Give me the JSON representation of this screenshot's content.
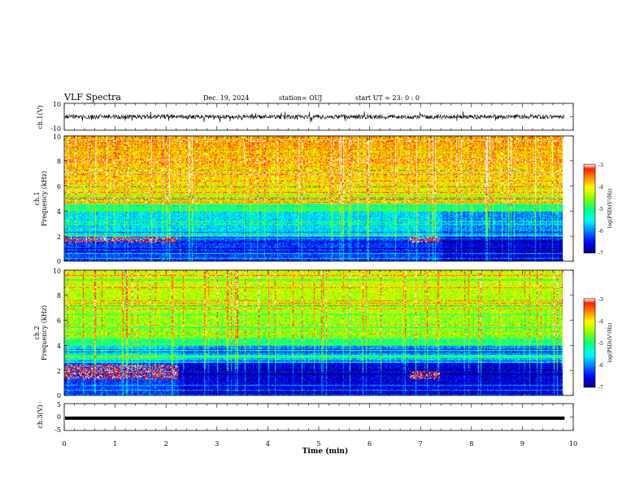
{
  "header": {
    "title": "VLF Spectra",
    "date": "Dec. 19, 2024",
    "station": "station= OUJ",
    "start": "start  UT =   23: 0  : 0"
  },
  "colors": {
    "colormap": [
      "#000080",
      "#0000ff",
      "#0080ff",
      "#00ffff",
      "#00ff80",
      "#80ff00",
      "#ffff00",
      "#ff8000",
      "#ff0000",
      "#ffffff"
    ],
    "trace": "#000000",
    "axis": "#000000"
  },
  "chart_data": [
    {
      "type": "line",
      "panel": "ch1-waveform",
      "ylabel": "ch.1(V)",
      "ylim": [
        -10,
        10
      ],
      "yticks": [
        "10",
        "-10"
      ],
      "x_range": [
        0,
        9.83
      ],
      "description_values": {
        "baseline": 0,
        "typical_amplitude": 3,
        "max_amplitude": 9
      }
    },
    {
      "type": "heatmap",
      "panel": "ch1-spectrogram",
      "ylabel": "Frequency (kHz)",
      "channel_label": "ch.1",
      "ylim": [
        0,
        10
      ],
      "yticks": [
        "0",
        "2",
        "4",
        "6",
        "8",
        "10"
      ],
      "x_range": [
        0,
        9.83
      ],
      "colorbar": {
        "label": "log(PSD)(V²/Hz)",
        "ticks": [
          "-3",
          "-4",
          "-5",
          "-6",
          "-7"
        ],
        "range": [
          -7,
          -3
        ]
      },
      "features": {
        "high_band_level": -3.6,
        "mid_band_kHz": [
          4,
          4.6
        ],
        "low_band_kHz": [
          0,
          2
        ],
        "bright_segments": [
          {
            "x0": 0.0,
            "x1": 2.25,
            "f0": 1.5,
            "f1": 2.0
          },
          {
            "x0": 6.8,
            "x1": 7.4,
            "f0": 1.5,
            "f1": 2.0
          }
        ],
        "transition_min": 7.45
      }
    },
    {
      "type": "heatmap",
      "panel": "ch2-spectrogram",
      "ylabel": "Frequency (kHz)",
      "channel_label": "ch.2",
      "ylim": [
        0,
        10
      ],
      "yticks": [
        "0",
        "2",
        "4",
        "6",
        "8",
        "10"
      ],
      "x_range": [
        0,
        9.83
      ],
      "colorbar": {
        "label": "log(PSD)(V²/Hz)",
        "ticks": [
          "-3",
          "-4",
          "-5",
          "-6",
          "-7"
        ],
        "range": [
          -7,
          -3
        ]
      },
      "features": {
        "high_band_level": -4.1,
        "mid_band_kHz": [
          4,
          4.6
        ],
        "low_band_kHz": [
          0,
          3
        ],
        "bright_segments": [
          {
            "x0": 0.0,
            "x1": 2.25,
            "f0": 1.3,
            "f1": 2.5
          },
          {
            "x0": 6.8,
            "x1": 7.4,
            "f0": 1.3,
            "f1": 2.0
          }
        ],
        "transition_min": 2.25
      }
    },
    {
      "type": "line",
      "panel": "ch3-waveform",
      "ylabel": "ch.3(V)",
      "ylim": [
        -5,
        5
      ],
      "yticks": [
        "5",
        "0",
        "-5"
      ],
      "x_range": [
        0,
        9.83
      ],
      "description_values": {
        "constant_value": -0.4
      }
    }
  ],
  "xaxis": {
    "label": "Time (min)",
    "ticks": [
      "0",
      "1",
      "2",
      "3",
      "4",
      "5",
      "6",
      "7",
      "8",
      "9",
      "10"
    ],
    "xlim": [
      0,
      10
    ]
  }
}
